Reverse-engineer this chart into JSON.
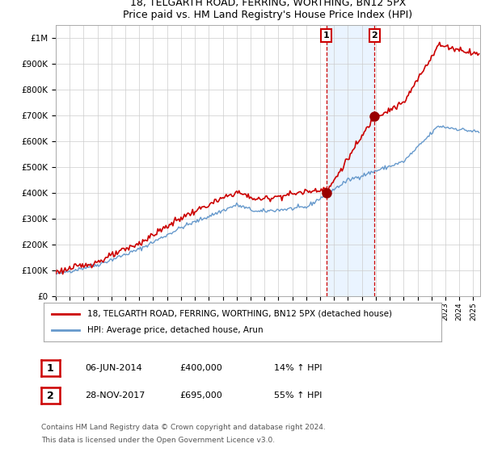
{
  "title1": "18, TELGARTH ROAD, FERRING, WORTHING, BN12 5PX",
  "title2": "Price paid vs. HM Land Registry's House Price Index (HPI)",
  "legend_label1": "18, TELGARTH ROAD, FERRING, WORTHING, BN12 5PX (detached house)",
  "legend_label2": "HPI: Average price, detached house, Arun",
  "annotation1_label": "1",
  "annotation1_date": "06-JUN-2014",
  "annotation1_price": "£400,000",
  "annotation1_hpi": "14% ↑ HPI",
  "annotation2_label": "2",
  "annotation2_date": "28-NOV-2017",
  "annotation2_price": "£695,000",
  "annotation2_hpi": "55% ↑ HPI",
  "footnote1": "Contains HM Land Registry data © Crown copyright and database right 2024.",
  "footnote2": "This data is licensed under the Open Government Licence v3.0.",
  "red_color": "#cc0000",
  "blue_color": "#6699cc",
  "shade_color": "#ddeeff",
  "marker_color": "#990000",
  "vline_color": "#cc0000",
  "box_color": "#cc0000",
  "ylim": [
    0,
    1050000
  ],
  "xlim_start": 1995.0,
  "xlim_end": 2025.5,
  "sale1_year": 2014.44,
  "sale1_value": 400000,
  "sale2_year": 2017.91,
  "sale2_value": 695000,
  "hpi_seed": 42,
  "prop_seed": 123
}
